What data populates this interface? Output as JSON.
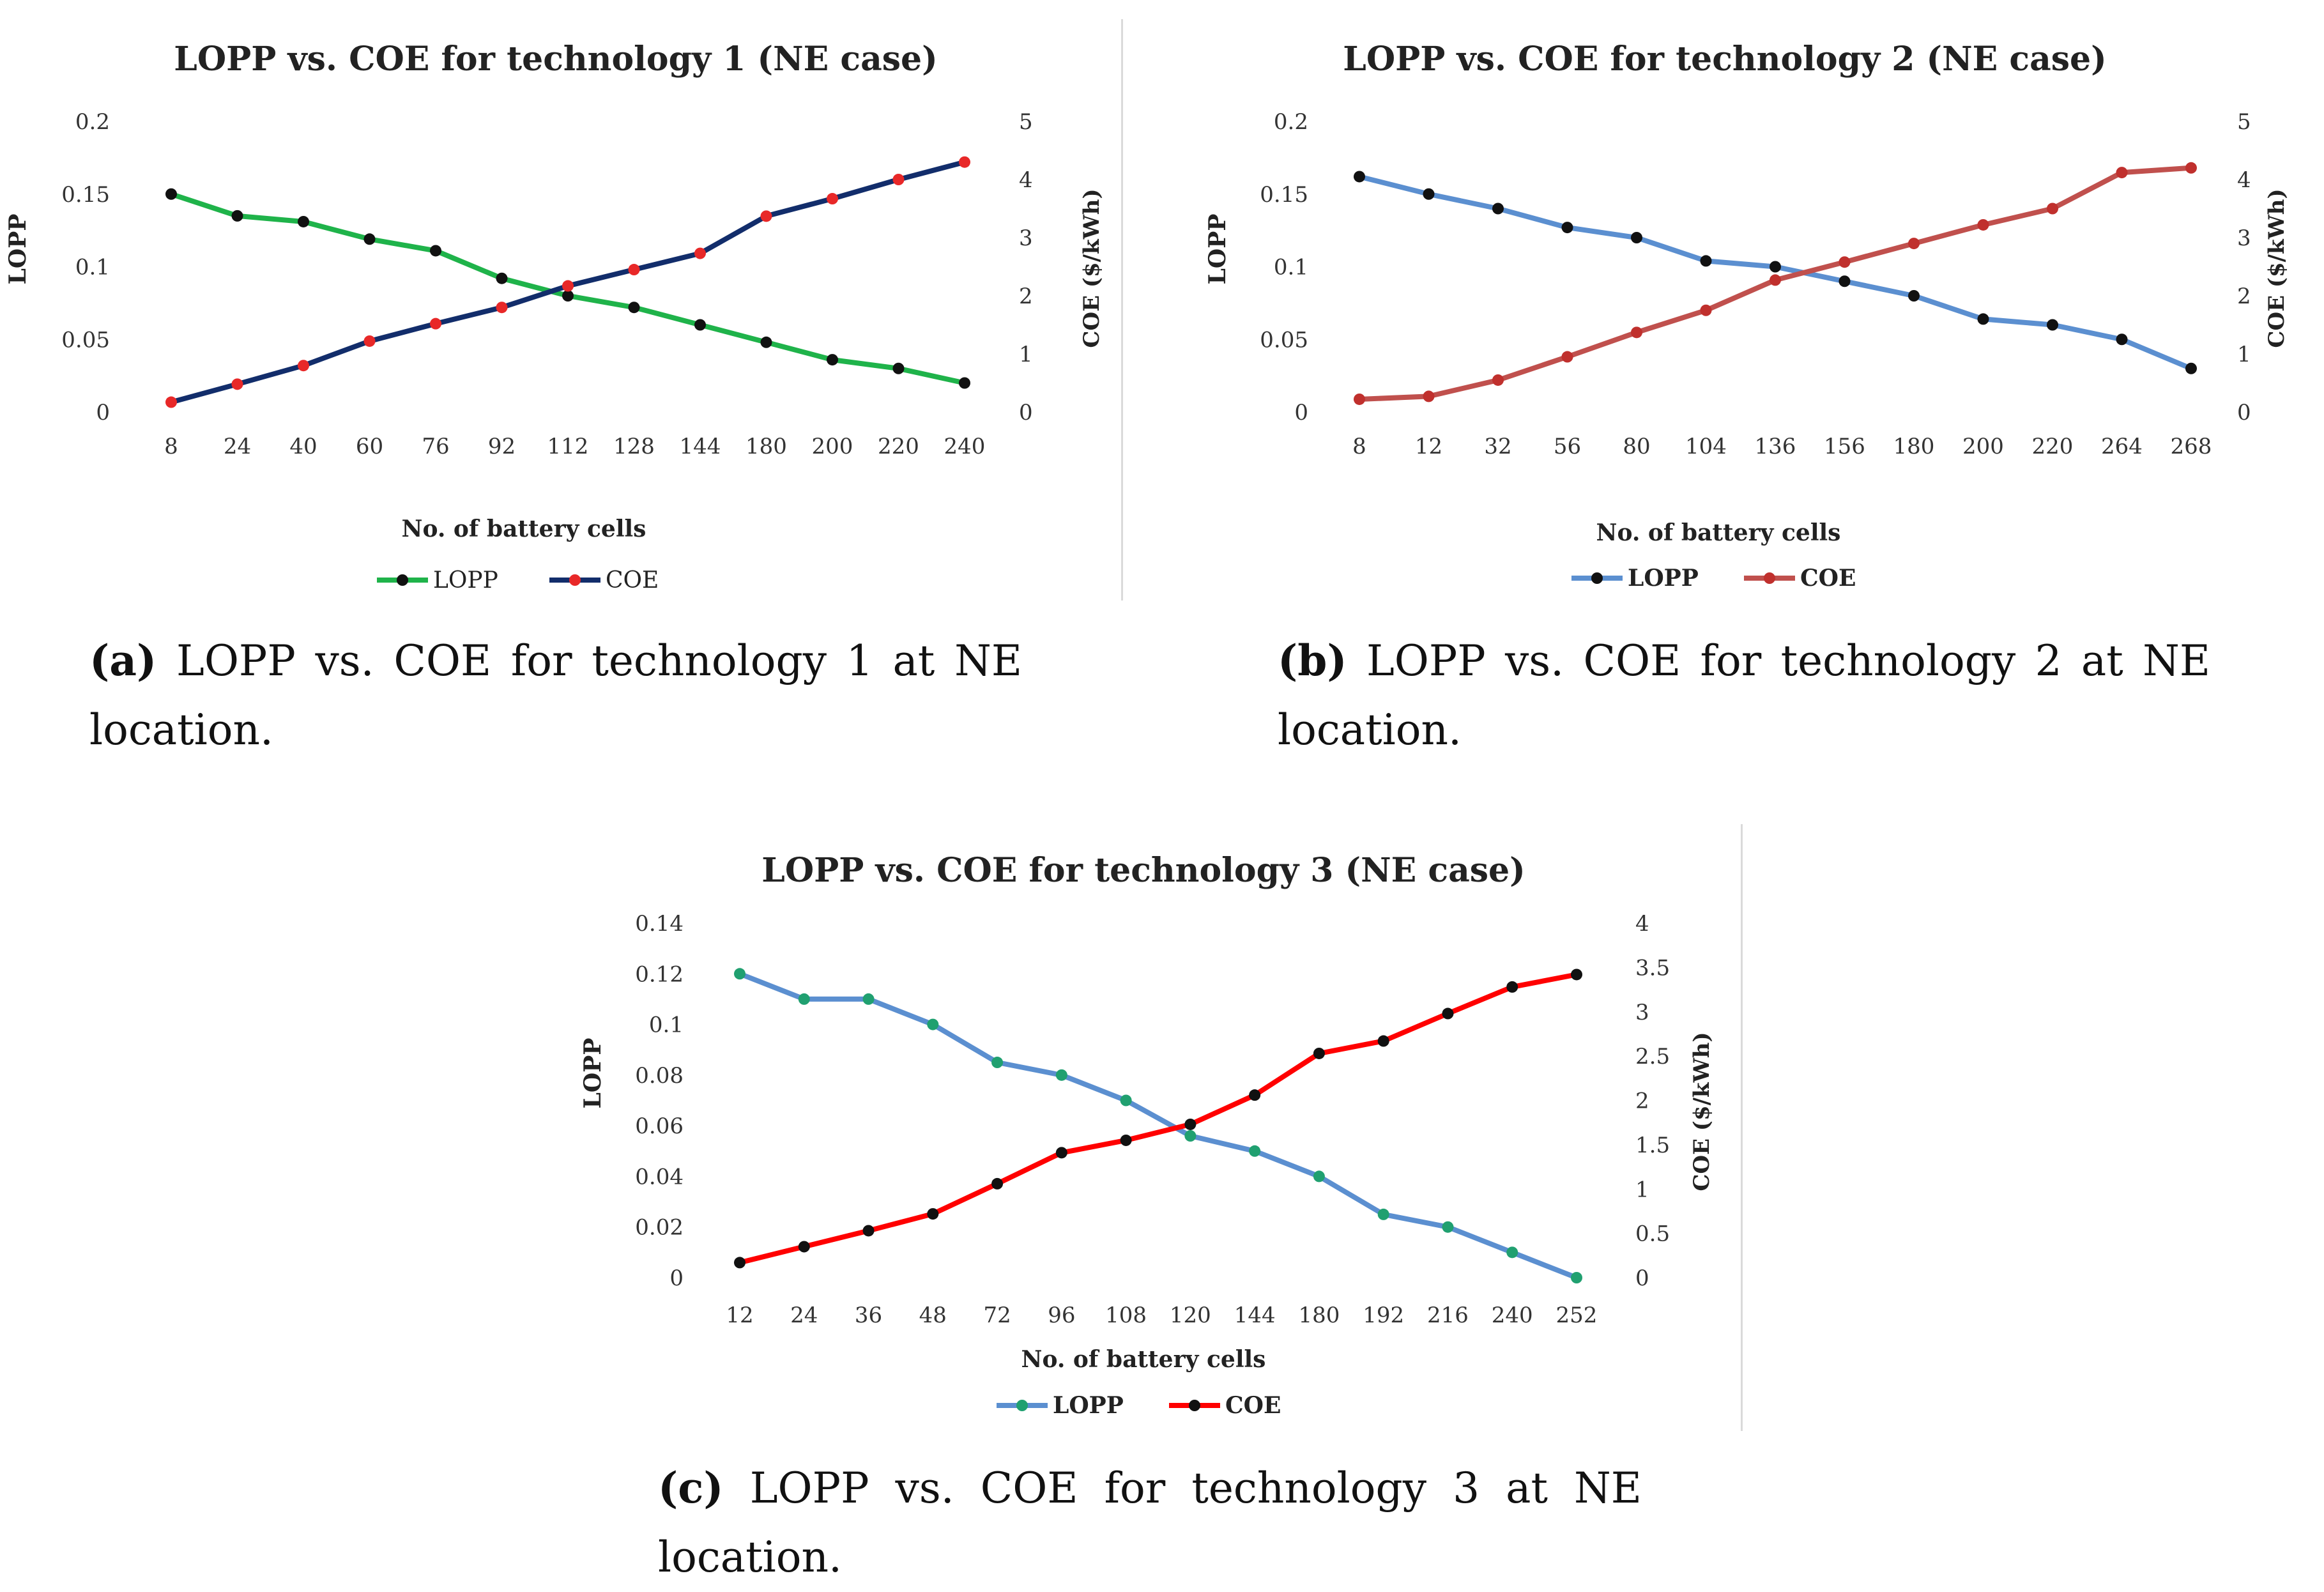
{
  "charts": [
    {
      "caption_label": "(a)",
      "caption_text": "LOPP vs.  COE for technology 1 at NE location.",
      "colors": {
        "lopp": "#1fb34a",
        "coe": "#122d6b",
        "lopp_marker": "#111111",
        "coe_marker": "#e82828"
      }
    },
    {
      "caption_label": "(b)",
      "caption_text": "LOPP vs.  COE for technology 2 at NE location.",
      "colors": {
        "lopp": "#5b8fd0",
        "coe": "#c0504d",
        "lopp_marker": "#111111",
        "coe_marker": "#c0302d"
      }
    },
    {
      "caption_label": "(c)",
      "caption_text": "LOPP vs.  COE for technology 3 at NE location.",
      "colors": {
        "lopp": "#5b8fd0",
        "coe": "#ff0000",
        "lopp_marker": "#20a070",
        "coe_marker": "#111111"
      }
    }
  ],
  "chart_data": [
    {
      "type": "line",
      "title": "LOPP vs. COE for technology 1 (NE case)",
      "xlabel": "No. of battery cells",
      "ylabel": "LOPP",
      "y2label": "COE ($/kWh)",
      "categories": [
        "8",
        "24",
        "40",
        "60",
        "76",
        "92",
        "112",
        "128",
        "144",
        "180",
        "200",
        "220",
        "240"
      ],
      "ylim": [
        0,
        0.2
      ],
      "yticks": [
        "0",
        "0.05",
        "0.1",
        "0.15",
        "0.2"
      ],
      "y2lim": [
        0,
        5
      ],
      "y2ticks": [
        "0",
        "1",
        "2",
        "3",
        "4",
        "5"
      ],
      "series": [
        {
          "name": "LOPP",
          "axis": "left",
          "values": [
            0.15,
            0.135,
            0.131,
            0.119,
            0.111,
            0.092,
            0.08,
            0.072,
            0.06,
            0.048,
            0.036,
            0.03,
            0.02
          ]
        },
        {
          "name": "COE",
          "axis": "right",
          "values": [
            0.17,
            0.48,
            0.8,
            1.22,
            1.52,
            1.8,
            2.17,
            2.45,
            2.73,
            3.37,
            3.67,
            4.0,
            4.3
          ]
        }
      ],
      "legend": "bottom"
    },
    {
      "type": "line",
      "title": "LOPP vs. COE for technology 2 (NE case)",
      "xlabel": "No. of battery cells",
      "ylabel": "LOPP",
      "y2label": "COE ($/kWh)",
      "categories": [
        "8",
        "12",
        "32",
        "56",
        "80",
        "104",
        "136",
        "156",
        "180",
        "200",
        "220",
        "264",
        "268"
      ],
      "ylim": [
        0,
        0.2
      ],
      "yticks": [
        "0",
        "0.05",
        "0.1",
        "0.15",
        "0.2"
      ],
      "y2lim": [
        0,
        5
      ],
      "y2ticks": [
        "0",
        "1",
        "2",
        "3",
        "4",
        "5"
      ],
      "series": [
        {
          "name": "LOPP",
          "axis": "left",
          "values": [
            0.162,
            0.15,
            0.14,
            0.127,
            0.12,
            0.104,
            0.1,
            0.09,
            0.08,
            0.064,
            0.06,
            0.05,
            0.03
          ]
        },
        {
          "name": "COE",
          "axis": "right",
          "values": [
            0.22,
            0.27,
            0.55,
            0.95,
            1.37,
            1.75,
            2.27,
            2.58,
            2.9,
            3.22,
            3.5,
            4.12,
            4.2
          ]
        }
      ],
      "legend": "bottom"
    },
    {
      "type": "line",
      "title": "LOPP vs. COE for technology 3 (NE case)",
      "xlabel": "No. of battery cells",
      "ylabel": "LOPP",
      "y2label": "COE ($/kWh)",
      "categories": [
        "12",
        "24",
        "36",
        "48",
        "72",
        "96",
        "108",
        "120",
        "144",
        "180",
        "192",
        "216",
        "240",
        "252"
      ],
      "ylim": [
        0,
        0.14
      ],
      "yticks": [
        "0",
        "0.02",
        "0.04",
        "0.06",
        "0.08",
        "0.1",
        "0.12",
        "0.14"
      ],
      "y2lim": [
        0,
        4
      ],
      "y2ticks": [
        "0",
        "0.5",
        "1",
        "1.5",
        "2",
        "2.5",
        "3",
        "3.5",
        "4"
      ],
      "series": [
        {
          "name": "LOPP",
          "axis": "left",
          "values": [
            0.12,
            0.11,
            0.11,
            0.1,
            0.085,
            0.08,
            0.07,
            0.056,
            0.05,
            0.04,
            0.025,
            0.02,
            0.01,
            0.0
          ]
        },
        {
          "name": "COE",
          "axis": "right",
          "values": [
            0.17,
            0.35,
            0.53,
            0.72,
            1.06,
            1.41,
            1.55,
            1.73,
            2.06,
            2.53,
            2.67,
            2.98,
            3.28,
            3.42
          ]
        }
      ],
      "legend": "bottom"
    }
  ]
}
